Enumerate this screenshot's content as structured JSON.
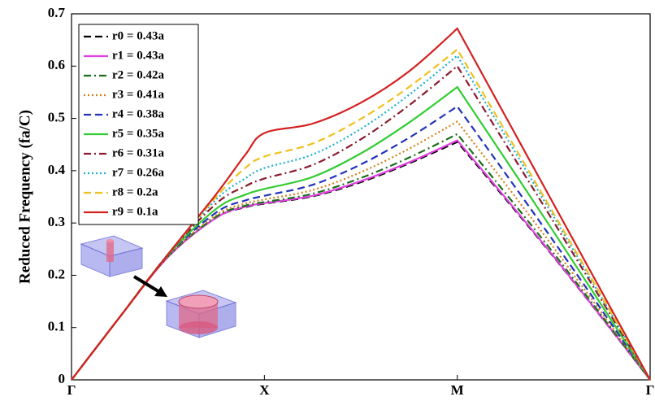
{
  "chart_data": {
    "type": "line",
    "y_label": "Reduced Frequency (fa/C)",
    "x": [
      0,
      0.25,
      0.5,
      0.75,
      0.9,
      1,
      1.25,
      1.5,
      1.75,
      2,
      2.5,
      3
    ],
    "xlim": [
      0,
      3
    ],
    "xticks": [
      {
        "value": 0,
        "label": "Γ"
      },
      {
        "value": 1,
        "label": "X"
      },
      {
        "value": 2,
        "label": "M"
      },
      {
        "value": 3,
        "label": "Γ"
      }
    ],
    "ylim": [
      0,
      0.7
    ],
    "yticks": [
      0,
      0.1,
      0.2,
      0.3,
      0.4,
      0.5,
      0.6,
      0.7
    ],
    "legend": "upper left",
    "series": [
      {
        "name": "r0 = 0.43a",
        "color": "#000000",
        "dash": "dashed",
        "values": [
          0,
          0.12,
          0.235,
          0.31,
          0.33,
          0.337,
          0.351,
          0.378,
          0.414,
          0.455,
          0.235,
          0
        ]
      },
      {
        "name": "r1 = 0.43a",
        "color": "#e040e0",
        "dash": "solid",
        "values": [
          0,
          0.12,
          0.235,
          0.31,
          0.331,
          0.338,
          0.352,
          0.38,
          0.416,
          0.458,
          0.236,
          0
        ]
      },
      {
        "name": "r2 = 0.42a",
        "color": "#1a6e1a",
        "dash": "dashdot",
        "values": [
          0,
          0.12,
          0.236,
          0.312,
          0.333,
          0.34,
          0.356,
          0.386,
          0.425,
          0.47,
          0.242,
          0
        ]
      },
      {
        "name": "r3 = 0.41a",
        "color": "#d4801a",
        "dash": "dotted",
        "values": [
          0,
          0.12,
          0.237,
          0.315,
          0.337,
          0.345,
          0.363,
          0.397,
          0.442,
          0.494,
          0.253,
          0
        ]
      },
      {
        "name": "r4 = 0.38a",
        "color": "#2233bb",
        "dash": "dashed",
        "values": [
          0,
          0.12,
          0.238,
          0.32,
          0.343,
          0.352,
          0.373,
          0.412,
          0.463,
          0.523,
          0.265,
          0
        ]
      },
      {
        "name": "r5 = 0.35a",
        "color": "#33cc33",
        "dash": "solid",
        "values": [
          0,
          0.12,
          0.239,
          0.327,
          0.354,
          0.365,
          0.388,
          0.433,
          0.492,
          0.56,
          0.283,
          0
        ]
      },
      {
        "name": "r6 = 0.31a",
        "color": "#8b1a2e",
        "dash": "dashdot",
        "values": [
          0,
          0.12,
          0.24,
          0.337,
          0.37,
          0.385,
          0.411,
          0.46,
          0.525,
          0.6,
          0.302,
          0
        ]
      },
      {
        "name": "r7 = 0.26a",
        "color": "#1ab0d0",
        "dash": "dotted",
        "values": [
          0,
          0.12,
          0.24,
          0.345,
          0.385,
          0.405,
          0.431,
          0.48,
          0.545,
          0.62,
          0.312,
          0
        ]
      },
      {
        "name": "r8 = 0.2a",
        "color": "#f0c020",
        "dash": "dashed",
        "values": [
          0,
          0.12,
          0.24,
          0.35,
          0.405,
          0.427,
          0.452,
          0.499,
          0.56,
          0.632,
          0.318,
          0
        ]
      },
      {
        "name": "r9 = 0.1a",
        "color": "#d42020",
        "dash": "solid",
        "values": [
          0,
          0.12,
          0.24,
          0.355,
          0.43,
          0.472,
          0.49,
          0.53,
          0.59,
          0.672,
          0.336,
          0
        ]
      }
    ]
  }
}
